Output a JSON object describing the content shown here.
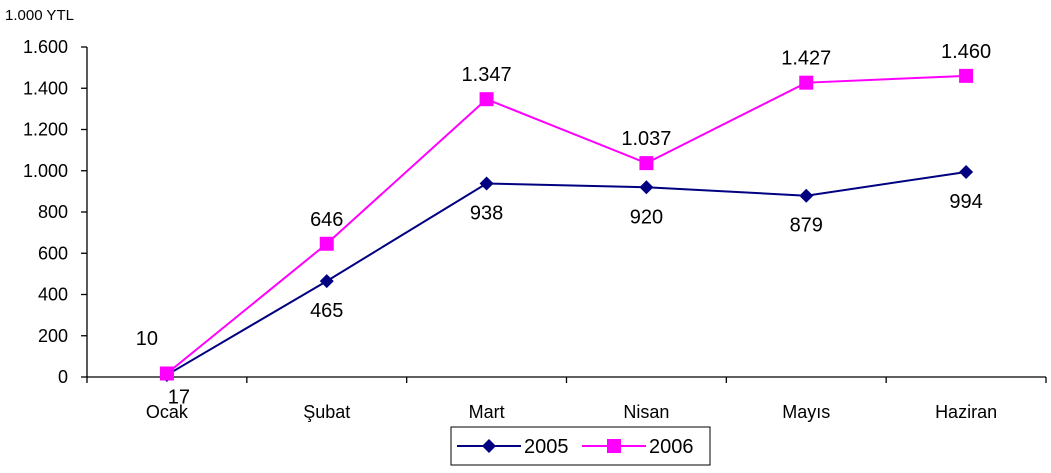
{
  "chart_data": {
    "type": "line",
    "unit_label": "1.000 YTL",
    "categories": [
      "Ocak",
      "Şubat",
      "Mart",
      "Nisan",
      "Mayıs",
      "Haziran"
    ],
    "ylim": [
      0,
      1600
    ],
    "yticks": [
      0,
      200,
      400,
      600,
      800,
      1000,
      1200,
      1400,
      1600
    ],
    "ytick_labels": [
      "0",
      "200",
      "400",
      "600",
      "800",
      "1.000",
      "1.200",
      "1.400",
      "1.600"
    ],
    "grid": false,
    "legend": "bottom",
    "series": [
      {
        "name": "2005",
        "color": "#000080",
        "marker": "diamond",
        "values": [
          10,
          465,
          938,
          920,
          879,
          994
        ],
        "labels": [
          "10",
          "465",
          "938",
          "920",
          "879",
          "994"
        ]
      },
      {
        "name": "2006",
        "color": "#FF00FF",
        "marker": "square",
        "values": [
          17,
          646,
          1347,
          1037,
          1427,
          1460
        ],
        "labels": [
          "17",
          "646",
          "1.347",
          "1.037",
          "1.427",
          "1.460"
        ]
      }
    ]
  }
}
